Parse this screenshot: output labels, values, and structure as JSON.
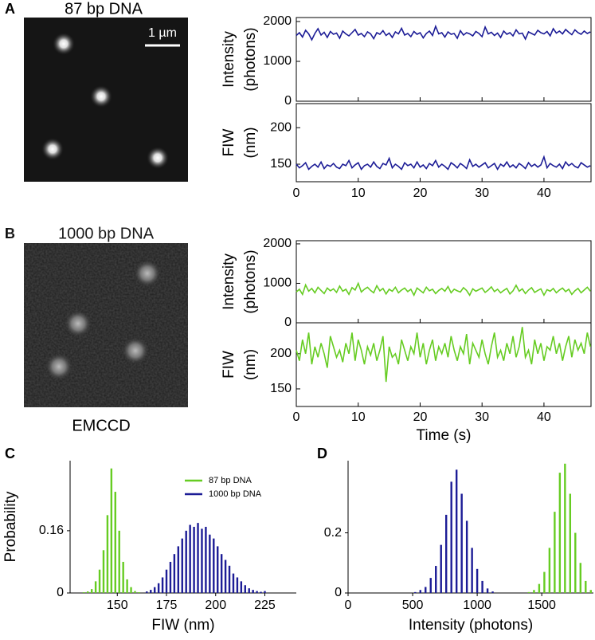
{
  "images": [
    {
      "label": "A",
      "title": "87 bp DNA",
      "scale_bar": "1 µm"
    },
    {
      "label": "B",
      "title": "1000 bp DNA",
      "caption": "EMCCD"
    }
  ],
  "chart_data": [
    {
      "type": "line",
      "xlim": [
        0,
        47.6
      ],
      "xticks": [
        0,
        10,
        20,
        30,
        40
      ],
      "x": [
        0,
        0.5,
        1,
        1.5,
        2,
        2.5,
        3,
        3.5,
        4,
        4.5,
        5,
        5.5,
        6,
        6.5,
        7,
        7.5,
        8,
        8.5,
        9,
        9.5,
        10,
        10.5,
        11,
        11.5,
        12,
        12.5,
        13,
        13.5,
        14,
        14.5,
        15,
        15.5,
        16,
        16.5,
        17,
        17.5,
        18,
        18.5,
        19,
        19.5,
        20,
        20.5,
        21,
        21.5,
        22,
        22.5,
        23,
        23.5,
        24,
        24.5,
        25,
        25.5,
        26,
        26.5,
        27,
        27.5,
        28,
        28.5,
        29,
        29.5,
        30,
        30.5,
        31,
        31.5,
        32,
        32.5,
        33,
        33.5,
        34,
        34.5,
        35,
        35.5,
        36,
        36.5,
        37,
        37.5,
        38,
        38.5,
        39,
        39.5,
        40,
        40.5,
        41,
        41.5,
        42,
        42.5,
        43,
        43.5,
        44,
        44.5,
        45,
        45.5,
        46,
        46.5,
        47,
        47.5
      ],
      "rows": [
        {
          "ylabel": [
            "Intensity",
            "(photons)"
          ],
          "ylim": [
            0,
            2100
          ],
          "yticks": [
            0,
            1000,
            2000
          ],
          "series": [
            {
              "color": "#1c1c96",
              "values": [
                1650,
                1720,
                1610,
                1780,
                1690,
                1540,
                1700,
                1820,
                1660,
                1730,
                1600,
                1750,
                1680,
                1710,
                1580,
                1760,
                1690,
                1640,
                1720,
                1800,
                1660,
                1700,
                1620,
                1740,
                1690,
                1570,
                1720,
                1680,
                1770,
                1650,
                1710,
                1600,
                1740,
                1690,
                1830,
                1660,
                1700,
                1620,
                1750,
                1680,
                1720,
                1590,
                1700,
                1760,
                1650,
                1880,
                1690,
                1720,
                1610,
                1740,
                1680,
                1700,
                1580,
                1770,
                1660,
                1720,
                1690,
                1640,
                1750,
                1700,
                1620,
                1860,
                1690,
                1730,
                1650,
                1710,
                1600,
                1760,
                1680,
                1720,
                1640,
                1790,
                1690,
                1710,
                1560,
                1740,
                1700,
                1660,
                1780,
                1720,
                1690,
                1750,
                1640,
                1820,
                1710,
                1760,
                1690,
                1800,
                1730,
                1670,
                1790,
                1720,
                1680,
                1760,
                1700,
                1740
              ]
            }
          ]
        },
        {
          "ylabel": [
            "FIW",
            "(nm)"
          ],
          "ylim": [
            126,
            233
          ],
          "yticks": [
            150,
            200
          ],
          "series": [
            {
              "color": "#1c1c96",
              "values": [
                150,
                145,
                148,
                152,
                143,
                147,
                150,
                146,
                153,
                144,
                149,
                147,
                151,
                146,
                144,
                150,
                148,
                155,
                145,
                149,
                152,
                143,
                148,
                150,
                146,
                153,
                147,
                144,
                151,
                149,
                158,
                145,
                150,
                147,
                143,
                152,
                148,
                150,
                145,
                153,
                146,
                149,
                144,
                151,
                148,
                155,
                146,
                150,
                147,
                143,
                152,
                149,
                145,
                151,
                148,
                144,
                156,
                147,
                150,
                146,
                149,
                152,
                145,
                148,
                151,
                143,
                150,
                147,
                153,
                146,
                149,
                145,
                151,
                148,
                144,
                152,
                147,
                150,
                146,
                149,
                160,
                145,
                151,
                148,
                146,
                150,
                144,
                153,
                148,
                151,
                147,
                145,
                152,
                149,
                146,
                148
              ]
            }
          ]
        }
      ]
    },
    {
      "type": "line",
      "xlim": [
        0,
        47.6
      ],
      "xticks": [
        0,
        10,
        20,
        30,
        40
      ],
      "xlabel": "Time (s)",
      "x": [
        0,
        0.5,
        1,
        1.5,
        2,
        2.5,
        3,
        3.5,
        4,
        4.5,
        5,
        5.5,
        6,
        6.5,
        7,
        7.5,
        8,
        8.5,
        9,
        9.5,
        10,
        10.5,
        11,
        11.5,
        12,
        12.5,
        13,
        13.5,
        14,
        14.5,
        15,
        15.5,
        16,
        16.5,
        17,
        17.5,
        18,
        18.5,
        19,
        19.5,
        20,
        20.5,
        21,
        21.5,
        22,
        22.5,
        23,
        23.5,
        24,
        24.5,
        25,
        25.5,
        26,
        26.5,
        27,
        27.5,
        28,
        28.5,
        29,
        29.5,
        30,
        30.5,
        31,
        31.5,
        32,
        32.5,
        33,
        33.5,
        34,
        34.5,
        35,
        35.5,
        36,
        36.5,
        37,
        37.5,
        38,
        38.5,
        39,
        39.5,
        40,
        40.5,
        41,
        41.5,
        42,
        42.5,
        43,
        43.5,
        44,
        44.5,
        45,
        45.5,
        46,
        46.5,
        47,
        47.5
      ],
      "rows": [
        {
          "ylabel": [
            "Intensity",
            "(photons)"
          ],
          "ylim": [
            0,
            2080
          ],
          "yticks": [
            0,
            1000,
            2000
          ],
          "series": [
            {
              "color": "#66cc22",
              "values": [
                780,
                850,
                720,
                960,
                800,
                870,
                760,
                900,
                820,
                740,
                880,
                810,
                860,
                770,
                930,
                800,
                850,
                720,
                890,
                830,
                1000,
                780,
                850,
                900,
                820,
                760,
                940,
                810,
                870,
                730,
                850,
                800,
                900,
                760,
                830,
                880,
                790,
                850,
                700,
                880,
                820,
                760,
                900,
                810,
                850,
                740,
                820,
                870,
                800,
                920,
                760,
                850,
                810,
                780,
                890,
                820,
                700,
                860,
                800,
                840,
                880,
                770,
                830,
                910,
                790,
                850,
                760,
                820,
                870,
                730,
                810,
                950,
                800,
                860,
                740,
                830,
                890,
                770,
                820,
                860,
                700,
                840,
                800,
                870,
                760,
                830,
                880,
                790,
                850,
                720,
                810,
                870,
                760,
                830,
                900,
                800
              ]
            }
          ]
        },
        {
          "ylabel": [
            "FIW",
            "(nm)"
          ],
          "ylim": [
            125,
            244
          ],
          "yticks": [
            150,
            200
          ],
          "series": [
            {
              "color": "#66cc22",
              "values": [
                205,
                190,
                220,
                200,
                230,
                185,
                210,
                195,
                215,
                200,
                180,
                225,
                210,
                195,
                205,
                188,
                215,
                200,
                230,
                190,
                220,
                205,
                185,
                210,
                198,
                215,
                190,
                205,
                225,
                160,
                210,
                195,
                200,
                185,
                220,
                205,
                190,
                210,
                200,
                230,
                195,
                215,
                185,
                205,
                220,
                190,
                210,
                200,
                215,
                195,
                225,
                205,
                190,
                210,
                200,
                228,
                185,
                215,
                205,
                195,
                220,
                200,
                185,
                210,
                230,
                195,
                205,
                190,
                215,
                200,
                225,
                195,
                210,
                238,
                195,
                205,
                185,
                220,
                200,
                215,
                190,
                210,
                205,
                225,
                200,
                215,
                190,
                210,
                225,
                195,
                220,
                205,
                215,
                200,
                230,
                210
              ]
            }
          ]
        }
      ]
    },
    {
      "type": "histogram",
      "label": "C",
      "xlabel": "FIW (nm)",
      "ylabel": "Probability",
      "xlim": [
        126,
        241
      ],
      "xticks": [
        150,
        175,
        200,
        225
      ],
      "ylim": [
        0,
        0.34
      ],
      "yticks": [
        0,
        0.16
      ],
      "legend": "upper right",
      "series": [
        {
          "name": "87 bp DNA",
          "color": "#66cc22",
          "x": [
            133,
            135,
            137,
            139,
            141,
            143,
            145,
            147,
            149,
            151,
            153,
            155,
            157,
            159,
            161
          ],
          "values": [
            0.002,
            0.004,
            0.01,
            0.03,
            0.06,
            0.11,
            0.2,
            0.32,
            0.26,
            0.16,
            0.08,
            0.035,
            0.015,
            0.005,
            0.002
          ]
        },
        {
          "name": "1000 bp DNA",
          "color": "#1c1c96",
          "x": [
            165,
            167,
            169,
            171,
            173,
            175,
            177,
            179,
            181,
            183,
            185,
            187,
            189,
            191,
            193,
            195,
            197,
            199,
            201,
            203,
            205,
            207,
            209,
            211,
            213,
            215,
            217,
            219,
            221,
            223,
            225
          ],
          "values": [
            0.004,
            0.008,
            0.015,
            0.025,
            0.04,
            0.06,
            0.08,
            0.1,
            0.12,
            0.14,
            0.16,
            0.175,
            0.17,
            0.18,
            0.165,
            0.17,
            0.15,
            0.14,
            0.12,
            0.1,
            0.085,
            0.07,
            0.05,
            0.04,
            0.03,
            0.02,
            0.012,
            0.008,
            0.005,
            0.003,
            0.005
          ]
        }
      ]
    },
    {
      "type": "histogram",
      "label": "D",
      "xlabel": "Intensity (photons)",
      "xlim": [
        0,
        1900
      ],
      "xticks": [
        0,
        500,
        1000,
        1500
      ],
      "ylim": [
        0,
        0.44
      ],
      "yticks": [
        0,
        0.2
      ],
      "series": [
        {
          "color": "#1c1c96",
          "x": [
            520,
            560,
            600,
            640,
            680,
            720,
            760,
            800,
            840,
            880,
            920,
            960,
            1000,
            1040,
            1080,
            1120
          ],
          "values": [
            0.003,
            0.01,
            0.02,
            0.05,
            0.09,
            0.16,
            0.26,
            0.37,
            0.41,
            0.33,
            0.24,
            0.15,
            0.08,
            0.04,
            0.015,
            0.005
          ]
        },
        {
          "color": "#66cc22",
          "x": [
            1400,
            1440,
            1480,
            1520,
            1560,
            1600,
            1640,
            1680,
            1720,
            1760,
            1800,
            1840,
            1880
          ],
          "values": [
            0.003,
            0.01,
            0.03,
            0.07,
            0.15,
            0.27,
            0.4,
            0.43,
            0.33,
            0.2,
            0.1,
            0.04,
            0.01
          ]
        }
      ]
    }
  ]
}
